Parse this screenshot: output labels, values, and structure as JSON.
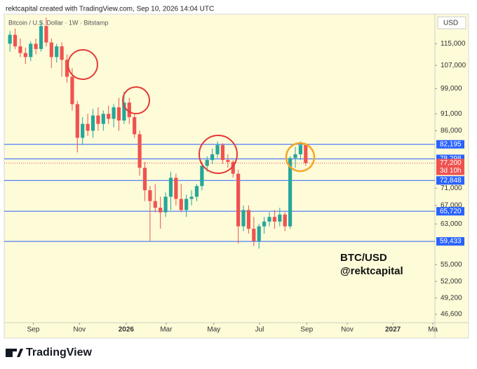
{
  "header": "rektcapital created with TradingView.com, Sep 10, 2026 14:04 UTC",
  "footer": "TradingView",
  "chart_data": {
    "type": "candlestick",
    "subtitle": "Bitcoin / U.S. Dollar · 1W · Bitstamp",
    "currency": "USD",
    "annotations": [
      "BTC/USD",
      "@rektcapital"
    ],
    "log_scale": true,
    "up_color": "#26a69a",
    "down_color": "#ef5350",
    "level_color": "#2962ff",
    "open": [
      115000,
      118500,
      114000,
      111500,
      110000,
      115000,
      113000,
      122000,
      115500,
      110000,
      114000,
      109000,
      103000,
      94000,
      84000,
      88000,
      86000,
      90500,
      88000,
      91000,
      89500,
      93000,
      89000,
      94500,
      90000,
      85000,
      76000,
      70500,
      68000,
      66500,
      65500,
      69000,
      73500,
      68500,
      66000,
      68500,
      69000,
      71500,
      76500,
      78000,
      79500,
      82000,
      78000,
      77500,
      74500,
      62500,
      66000,
      62000,
      59500,
      62500,
      63500,
      64500,
      63500,
      65000,
      62500,
      78500,
      79500,
      82000
    ],
    "high": [
      120000,
      121000,
      117000,
      113500,
      116000,
      117000,
      124000,
      125500,
      117000,
      115000,
      115500,
      111000,
      106000,
      95000,
      90000,
      91000,
      92500,
      93000,
      92000,
      93500,
      94000,
      96000,
      98000,
      96000,
      91000,
      86000,
      77500,
      71500,
      72000,
      69000,
      70000,
      75000,
      74500,
      72000,
      69500,
      70500,
      72000,
      77500,
      79000,
      81000,
      83000,
      82500,
      79500,
      78000,
      75500,
      67000,
      67000,
      64500,
      63000,
      64500,
      65500,
      66000,
      66500,
      65500,
      79000,
      81500,
      83000,
      82500
    ],
    "low": [
      112000,
      113000,
      110000,
      107500,
      108500,
      111000,
      112000,
      114000,
      106000,
      108000,
      103000,
      101000,
      92000,
      80000,
      82000,
      84500,
      84000,
      86000,
      86000,
      88000,
      87000,
      86000,
      88000,
      88000,
      84000,
      74000,
      68000,
      59500,
      65500,
      62000,
      64500,
      66000,
      67000,
      65500,
      64500,
      67000,
      68000,
      70500,
      75000,
      77000,
      78500,
      77000,
      76000,
      73500,
      59000,
      61500,
      61000,
      58500,
      58000,
      61000,
      62500,
      62000,
      62500,
      61500,
      62000,
      76000,
      78000,
      76500
    ],
    "close": [
      118500,
      114000,
      111500,
      110000,
      115000,
      113000,
      122000,
      115500,
      110000,
      114000,
      109000,
      103000,
      94000,
      84000,
      88000,
      86000,
      90500,
      88000,
      91000,
      89500,
      93000,
      89000,
      94500,
      90000,
      85000,
      76000,
      70500,
      68000,
      66500,
      65500,
      69000,
      73500,
      68500,
      66000,
      68500,
      69000,
      71500,
      76500,
      78000,
      79500,
      82000,
      78000,
      77500,
      74500,
      62500,
      66000,
      62000,
      59500,
      62500,
      63500,
      64500,
      63500,
      65000,
      62500,
      78500,
      79500,
      82000,
      77200
    ],
    "xlim": [
      -1.1,
      81.9
    ],
    "xticks": [
      {
        "value": 4.5,
        "label": "Sep"
      },
      {
        "value": 13.4,
        "label": "Nov"
      },
      {
        "value": 22.4,
        "label": "2026"
      },
      {
        "value": 30.1,
        "label": "Mar"
      },
      {
        "value": 39.3,
        "label": "May"
      },
      {
        "value": 48.1,
        "label": "Jul"
      },
      {
        "value": 57.2,
        "label": "Sep"
      },
      {
        "value": 65,
        "label": "Nov"
      },
      {
        "value": 73.8,
        "label": "2027"
      },
      {
        "value": 81.5,
        "label": "Ma"
      }
    ],
    "ylim": [
      45300,
      128500
    ],
    "yticks": [
      {
        "value": 115000,
        "label": "115,000"
      },
      {
        "value": 107000,
        "label": "107,000"
      },
      {
        "value": 99000,
        "label": "99,000"
      },
      {
        "value": 91000,
        "label": "91,000"
      },
      {
        "value": 86000,
        "label": "86,000"
      },
      {
        "value": 71000,
        "label": "71,000"
      },
      {
        "value": 67000,
        "label": "67,000"
      },
      {
        "value": 63000,
        "label": "63,000"
      },
      {
        "value": 55000,
        "label": "55,000"
      },
      {
        "value": 52000,
        "label": "52,000"
      },
      {
        "value": 49200,
        "label": "49,200"
      },
      {
        "value": 46600,
        "label": "46,600"
      }
    ],
    "levels": [
      {
        "value": 82195,
        "label": "82,195"
      },
      {
        "value": 78298,
        "label": "78,298"
      },
      {
        "value": 72848,
        "label": "72,848"
      },
      {
        "value": 65720,
        "label": "65,720"
      },
      {
        "value": 59433,
        "label": "59,433"
      }
    ],
    "last_price": {
      "value": 77200,
      "label": "77,200"
    },
    "countdown": "3d 10h"
  }
}
